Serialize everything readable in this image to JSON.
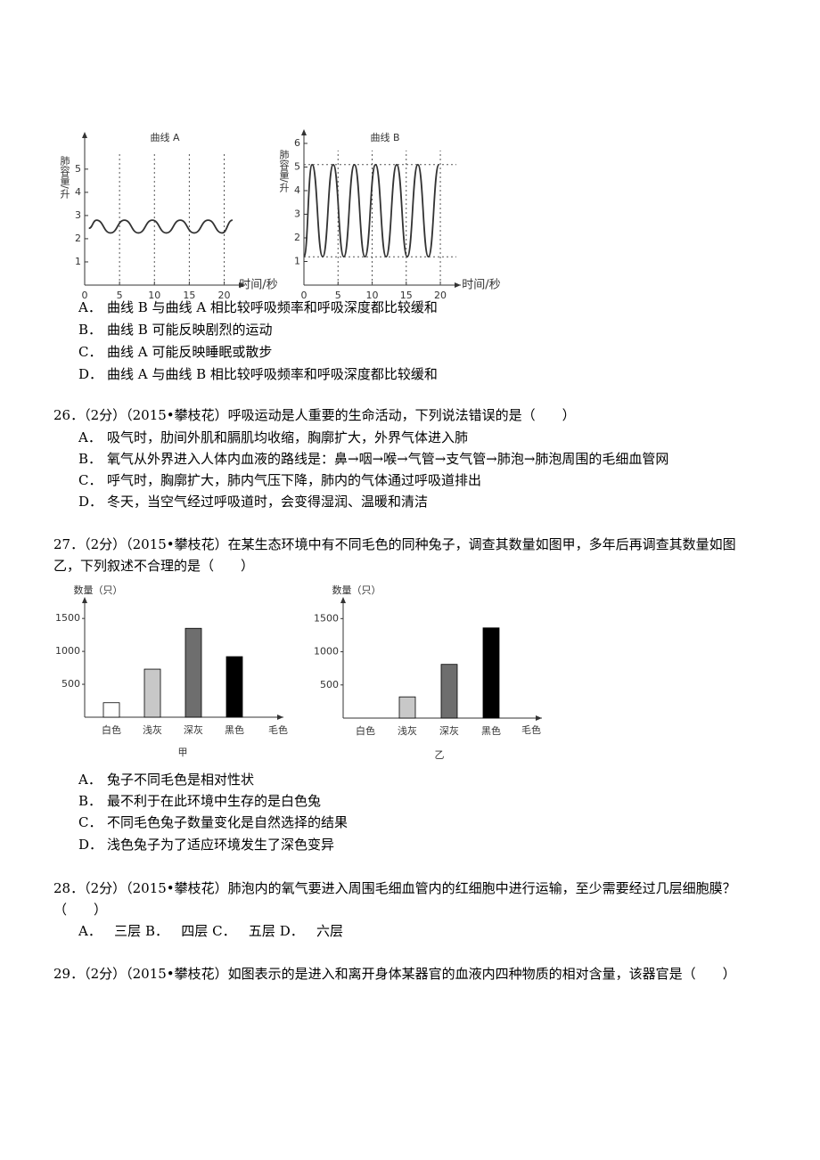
{
  "chart_data": [
    {
      "type": "line",
      "title": "曲线 A",
      "ylabel": "肺容量/升",
      "xlabel": "时间/秒",
      "color": "#333333",
      "xlim": [
        0,
        23
      ],
      "ylim": [
        0,
        6.3
      ],
      "xticks": [
        0,
        5,
        10,
        15,
        20
      ],
      "yticks": [
        1,
        2,
        3,
        4,
        5
      ],
      "tick_guides": true,
      "x": [
        0.6,
        1.7,
        3.7,
        5.7,
        7.7,
        9.7,
        11.7,
        13.7,
        15.7,
        17.7,
        19.7,
        21.2
      ],
      "values": [
        2.45,
        2.8,
        2.25,
        2.8,
        2.25,
        2.8,
        2.25,
        2.8,
        2.25,
        2.8,
        2.25,
        2.8
      ]
    },
    {
      "type": "line",
      "title": "曲线 B",
      "ylabel": "肺容量/升",
      "xlabel": "时间/秒",
      "color": "#333333",
      "xlim": [
        0,
        23
      ],
      "ylim": [
        0,
        6.3
      ],
      "xticks": [
        0,
        5,
        10,
        15,
        20
      ],
      "yticks": [
        1,
        2,
        3,
        4,
        5,
        6
      ],
      "tick_guides": true,
      "guides": [
        5.1,
        1.2
      ],
      "x": [
        0,
        1.2,
        2.75,
        4.3,
        5.85,
        7.4,
        8.95,
        10.5,
        12.05,
        13.6,
        15.15,
        16.7,
        18.25,
        19.8
      ],
      "values": [
        1.2,
        5.1,
        1.2,
        5.1,
        1.2,
        5.1,
        1.2,
        5.1,
        1.2,
        5.1,
        1.2,
        5.1,
        1.2,
        5.1
      ]
    },
    {
      "type": "bar",
      "ylabel": "数量（只）",
      "xlabel": "毛色",
      "caption": "甲",
      "categories": [
        "白色",
        "浅灰",
        "深灰",
        "黑色"
      ],
      "values": [
        220,
        730,
        1350,
        920
      ],
      "colors": [
        "#ffffff",
        "#c8c8c8",
        "#6e6e6e",
        "#000000"
      ],
      "ylim": [
        0,
        1800
      ],
      "yticks": [
        500,
        1000,
        1500
      ]
    },
    {
      "type": "bar",
      "ylabel": "数量（只）",
      "xlabel": "毛色",
      "caption": "乙",
      "categories": [
        "白色",
        "浅灰",
        "深灰",
        "黑色"
      ],
      "values": [
        0,
        320,
        810,
        1360
      ],
      "colors": [
        "#ffffff",
        "#c8c8c8",
        "#6e6e6e",
        "#000000"
      ],
      "ylim": [
        0,
        1800
      ],
      "yticks": [
        500,
        1000,
        1500
      ]
    }
  ],
  "questions": [
    {
      "options": [
        {
          "label": "A．",
          "text": "曲线 B 与曲线 A 相比较呼吸频率和呼吸深度都比较缓和"
        },
        {
          "label": "B．",
          "text": "曲线 B 可能反映剧烈的运动"
        },
        {
          "label": "C．",
          "text": "曲线 A 可能反映睡眠或散步"
        },
        {
          "label": "D．",
          "text": "曲线 A 与曲线 B 相比较呼吸频率和呼吸深度都比较缓和"
        }
      ]
    },
    {
      "stem": "26．（2分）（2015•攀枝花）呼吸运动是人重要的生命活动，下列说法错误的是（　　）",
      "options": [
        {
          "label": "A．",
          "text": "吸气时，肋间外肌和膈肌均收缩，胸廓扩大，外界气体进入肺"
        },
        {
          "label": "B．",
          "text": "氧气从外界进入人体内血液的路线是：鼻→咽→喉→气管→支气管→肺泡→肺泡周围的毛细血管网"
        },
        {
          "label": "C．",
          "text": "呼气时，胸廓扩大，肺内气压下降，肺内的气体通过呼吸道排出"
        },
        {
          "label": "D．",
          "text": "冬天，当空气经过呼吸道时，会变得湿润、温暖和清洁"
        }
      ]
    },
    {
      "stem": "27．（2分）（2015•攀枝花）在某生态环境中有不同毛色的同种兔子，调查其数量如图甲，多年后再调查其数量如图乙，下列叙述不合理的是（　　）",
      "options": [
        {
          "label": "A．",
          "text": "兔子不同毛色是相对性状"
        },
        {
          "label": "B．",
          "text": "最不利于在此环境中生存的是白色兔"
        },
        {
          "label": "C．",
          "text": "不同毛色兔子数量变化是自然选择的结果"
        },
        {
          "label": "D．",
          "text": "浅色兔子为了适应环境发生了深色变异"
        }
      ]
    },
    {
      "stem": "28．（2分）（2015•攀枝花）肺泡内的氧气要进入周围毛细血管内的红细胞中进行运输，至少需要经过几层细胞膜？（　　）",
      "options": [
        {
          "label": "A．",
          "text": "三层"
        },
        {
          "label": "B．",
          "text": "四层"
        },
        {
          "label": "C．",
          "text": "五层"
        },
        {
          "label": "D．",
          "text": "六层"
        }
      ]
    },
    {
      "stem": "29．（2分）（2015•攀枝花）如图表示的是进入和离开身体某器官的血液内四种物质的相对含量，该器官是（　　）"
    }
  ]
}
